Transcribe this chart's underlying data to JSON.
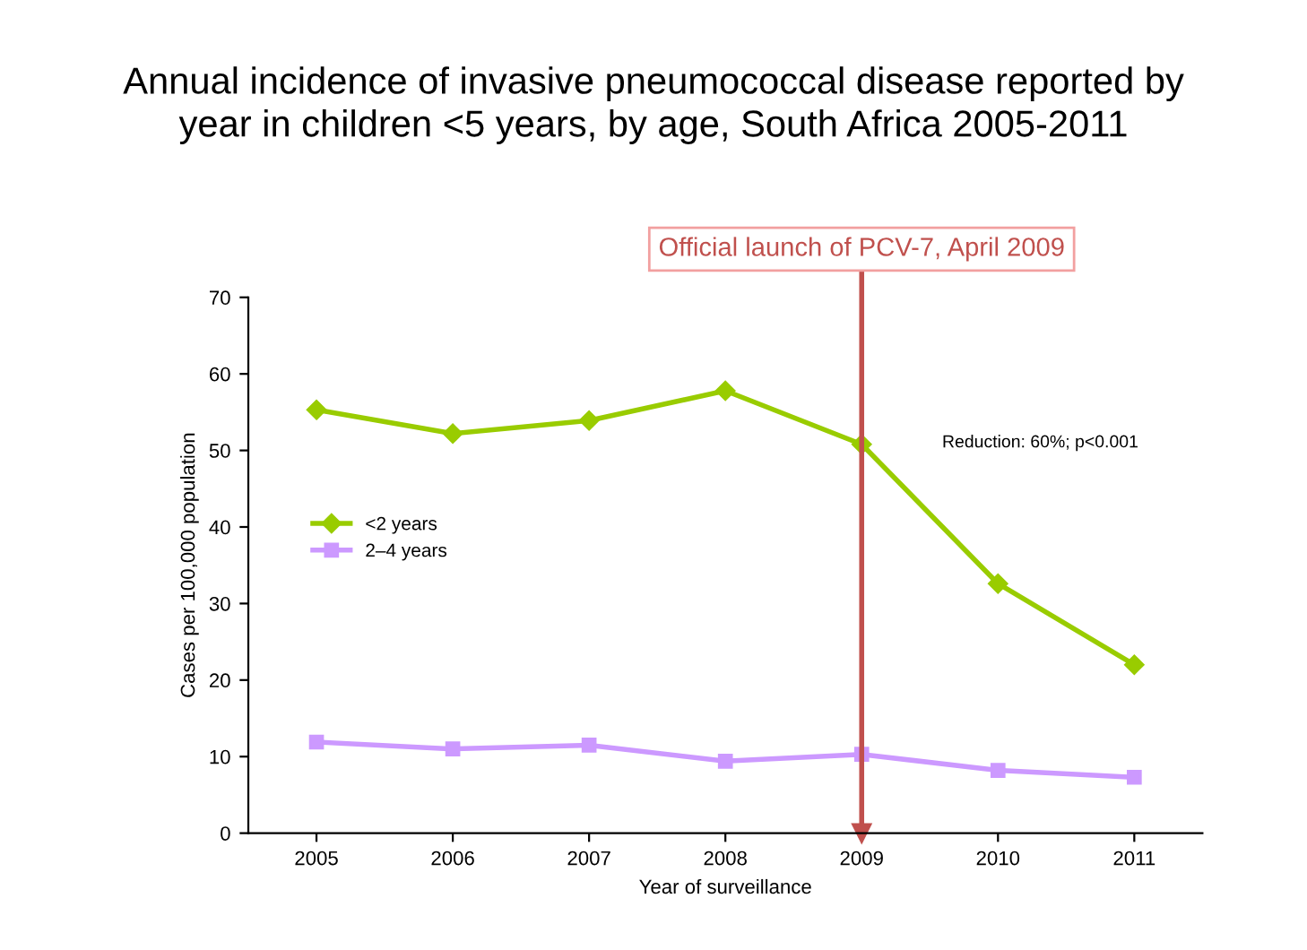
{
  "chart_data": {
    "type": "line",
    "title": "Annual incidence of invasive pneumococcal disease reported by\nyear in children <5 years, by age, South Africa 2005-2011",
    "xlabel": "Year of surveillance",
    "ylabel": "Cases per 100,000 population",
    "x": [
      2005,
      2006,
      2007,
      2008,
      2009,
      2010,
      2011
    ],
    "series": [
      {
        "name": "<2 years",
        "color": "#99cc00",
        "marker": "diamond",
        "values": [
          55.3,
          52.2,
          53.9,
          57.8,
          50.8,
          32.6,
          22.0
        ]
      },
      {
        "name": "2–4 years",
        "color": "#cc99ff",
        "marker": "square",
        "values": [
          11.9,
          11.0,
          11.5,
          9.4,
          10.3,
          8.2,
          7.3
        ]
      }
    ],
    "xlim": [
      2004.5,
      2011.5
    ],
    "xticks": [
      2005,
      2006,
      2007,
      2008,
      2009,
      2010,
      2011
    ],
    "ylim": [
      0,
      70
    ],
    "yticks": [
      0,
      10,
      20,
      30,
      40,
      50,
      60,
      70
    ],
    "ref_lines": [
      {
        "axis": "x",
        "value": 2009,
        "label": "Official launch of PCV-7, April 2009",
        "color": "#c0504d"
      }
    ],
    "annotations": [
      "Reduction: 60%; p<0.001"
    ],
    "legend": "left",
    "grid": false,
    "line_style": "solid"
  }
}
